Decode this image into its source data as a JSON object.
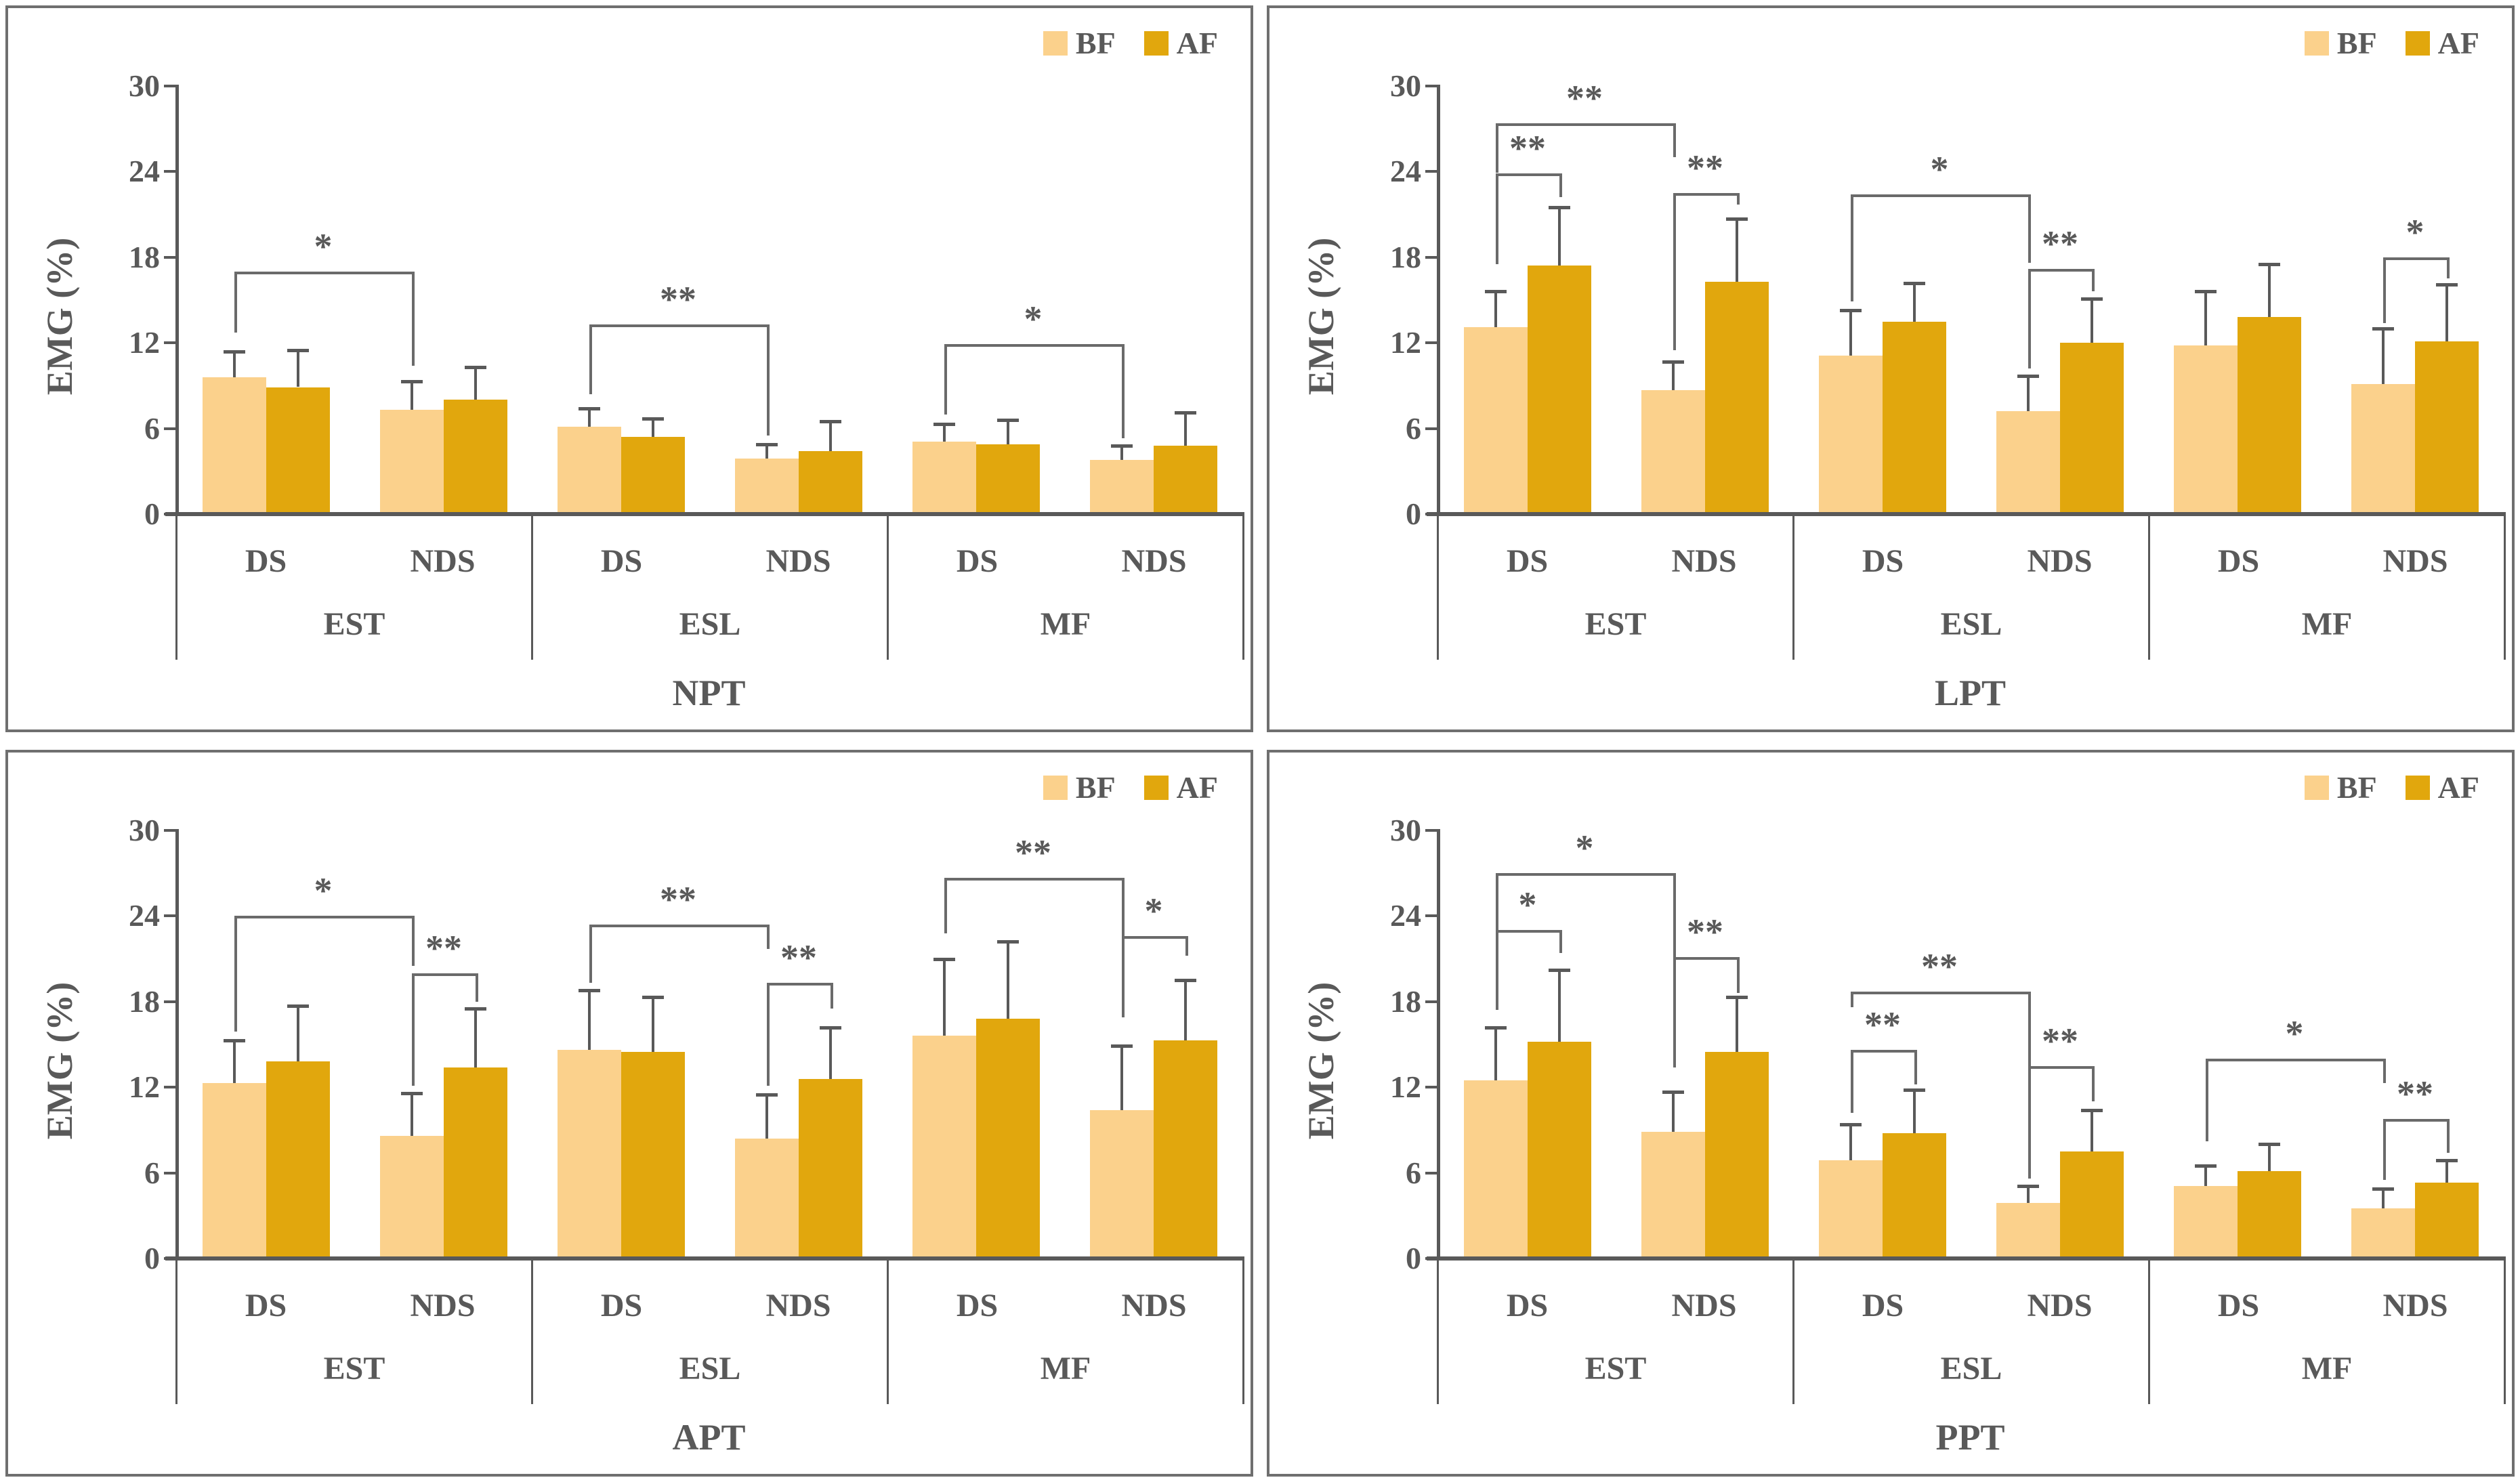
{
  "legend": {
    "items": [
      {
        "label": "BF",
        "color": "#FBD18C"
      },
      {
        "label": "AF",
        "color": "#E1A70D"
      }
    ]
  },
  "axis": {
    "label": "EMG (%)",
    "min": 0,
    "max": 30,
    "ticks": [
      0,
      6,
      12,
      18,
      24,
      30
    ]
  },
  "categories": {
    "groups": [
      "EST",
      "ESL",
      "MF"
    ],
    "subgroups": [
      "DS",
      "NDS"
    ]
  },
  "colors": {
    "bf": "#FBD18C",
    "af": "#E1A70D",
    "axis_line": "#595959",
    "text": "#595959",
    "error_bar": "#595959",
    "bracket": "#6a6a6a",
    "panel_border": "#6f6f6f",
    "background": "#ffffff"
  },
  "chart_data": [
    {
      "type": "bar",
      "title": "NPT",
      "ylabel": "EMG (%)",
      "ylim": [
        0,
        30
      ],
      "groups": [
        "EST",
        "ESL",
        "MF"
      ],
      "subgroups": [
        "DS",
        "NDS"
      ],
      "series": [
        "BF",
        "AF"
      ],
      "bars": [
        {
          "group": "EST",
          "subgroup": "DS",
          "series": "BF",
          "mean": 9.6,
          "err": 1.8
        },
        {
          "group": "EST",
          "subgroup": "DS",
          "series": "AF",
          "mean": 8.9,
          "err": 2.6
        },
        {
          "group": "EST",
          "subgroup": "NDS",
          "series": "BF",
          "mean": 7.3,
          "err": 2.0
        },
        {
          "group": "EST",
          "subgroup": "NDS",
          "series": "AF",
          "mean": 8.0,
          "err": 2.3
        },
        {
          "group": "ESL",
          "subgroup": "DS",
          "series": "BF",
          "mean": 6.1,
          "err": 1.3
        },
        {
          "group": "ESL",
          "subgroup": "DS",
          "series": "AF",
          "mean": 5.4,
          "err": 1.3
        },
        {
          "group": "ESL",
          "subgroup": "NDS",
          "series": "BF",
          "mean": 3.9,
          "err": 1.0
        },
        {
          "group": "ESL",
          "subgroup": "NDS",
          "series": "AF",
          "mean": 4.4,
          "err": 2.1
        },
        {
          "group": "MF",
          "subgroup": "DS",
          "series": "BF",
          "mean": 5.1,
          "err": 1.2
        },
        {
          "group": "MF",
          "subgroup": "DS",
          "series": "AF",
          "mean": 4.9,
          "err": 1.7
        },
        {
          "group": "MF",
          "subgroup": "NDS",
          "series": "BF",
          "mean": 3.8,
          "err": 1.0
        },
        {
          "group": "MF",
          "subgroup": "NDS",
          "series": "AF",
          "mean": 4.8,
          "err": 2.3
        }
      ],
      "brackets": [
        {
          "from": 0,
          "to": 2,
          "y": 17.0,
          "left_end": 12.7,
          "right_end": 10.4,
          "label": "*"
        },
        {
          "from": 4,
          "to": 6,
          "y": 13.3,
          "left_end": 8.4,
          "right_end": 5.5,
          "label": "**"
        },
        {
          "from": 8,
          "to": 10,
          "y": 11.9,
          "left_end": 7.0,
          "right_end": 5.3,
          "label": "*"
        }
      ]
    },
    {
      "type": "bar",
      "title": "LPT",
      "ylabel": "EMG (%)",
      "ylim": [
        0,
        30
      ],
      "groups": [
        "EST",
        "ESL",
        "MF"
      ],
      "subgroups": [
        "DS",
        "NDS"
      ],
      "series": [
        "BF",
        "AF"
      ],
      "bars": [
        {
          "group": "EST",
          "subgroup": "DS",
          "series": "BF",
          "mean": 13.1,
          "err": 2.5
        },
        {
          "group": "EST",
          "subgroup": "DS",
          "series": "AF",
          "mean": 17.4,
          "err": 4.1
        },
        {
          "group": "EST",
          "subgroup": "NDS",
          "series": "BF",
          "mean": 8.7,
          "err": 2.0
        },
        {
          "group": "EST",
          "subgroup": "NDS",
          "series": "AF",
          "mean": 16.3,
          "err": 4.4
        },
        {
          "group": "ESL",
          "subgroup": "DS",
          "series": "BF",
          "mean": 11.1,
          "err": 3.2
        },
        {
          "group": "ESL",
          "subgroup": "DS",
          "series": "AF",
          "mean": 13.5,
          "err": 2.7
        },
        {
          "group": "ESL",
          "subgroup": "NDS",
          "series": "BF",
          "mean": 7.2,
          "err": 2.5
        },
        {
          "group": "ESL",
          "subgroup": "NDS",
          "series": "AF",
          "mean": 12.0,
          "err": 3.1
        },
        {
          "group": "MF",
          "subgroup": "DS",
          "series": "BF",
          "mean": 11.8,
          "err": 3.8
        },
        {
          "group": "MF",
          "subgroup": "DS",
          "series": "AF",
          "mean": 13.8,
          "err": 3.7
        },
        {
          "group": "MF",
          "subgroup": "NDS",
          "series": "BF",
          "mean": 9.1,
          "err": 3.9
        },
        {
          "group": "MF",
          "subgroup": "NDS",
          "series": "AF",
          "mean": 12.1,
          "err": 4.0
        }
      ],
      "brackets": [
        {
          "from": 0,
          "to": 1,
          "y": 23.9,
          "left_end": 17.5,
          "right_end": 22.2,
          "label": "**"
        },
        {
          "from": 0,
          "to": 2,
          "y": 27.4,
          "left_end": 23.9,
          "right_end": 25.0,
          "label": "**"
        },
        {
          "from": 2,
          "to": 3,
          "y": 22.5,
          "left_end": 11.5,
          "right_end": 21.7,
          "label": "**"
        },
        {
          "from": 4,
          "to": 6,
          "y": 22.4,
          "left_end": 14.9,
          "right_end": 17.6,
          "label": "*"
        },
        {
          "from": 6,
          "to": 7,
          "y": 17.2,
          "left_end": 10.2,
          "right_end": 15.6,
          "label": "**"
        },
        {
          "from": 10,
          "to": 11,
          "y": 18.0,
          "left_end": 13.4,
          "right_end": 16.5,
          "label": "*"
        }
      ]
    },
    {
      "type": "bar",
      "title": "APT",
      "ylabel": "EMG (%)",
      "ylim": [
        0,
        30
      ],
      "groups": [
        "EST",
        "ESL",
        "MF"
      ],
      "subgroups": [
        "DS",
        "NDS"
      ],
      "series": [
        "BF",
        "AF"
      ],
      "bars": [
        {
          "group": "EST",
          "subgroup": "DS",
          "series": "BF",
          "mean": 12.3,
          "err": 3.0
        },
        {
          "group": "EST",
          "subgroup": "DS",
          "series": "AF",
          "mean": 13.8,
          "err": 3.9
        },
        {
          "group": "EST",
          "subgroup": "NDS",
          "series": "BF",
          "mean": 8.6,
          "err": 3.0
        },
        {
          "group": "EST",
          "subgroup": "NDS",
          "series": "AF",
          "mean": 13.4,
          "err": 4.1
        },
        {
          "group": "ESL",
          "subgroup": "DS",
          "series": "BF",
          "mean": 14.6,
          "err": 4.2
        },
        {
          "group": "ESL",
          "subgroup": "DS",
          "series": "AF",
          "mean": 14.5,
          "err": 3.8
        },
        {
          "group": "ESL",
          "subgroup": "NDS",
          "series": "BF",
          "mean": 8.4,
          "err": 3.1
        },
        {
          "group": "ESL",
          "subgroup": "NDS",
          "series": "AF",
          "mean": 12.6,
          "err": 3.6
        },
        {
          "group": "MF",
          "subgroup": "DS",
          "series": "BF",
          "mean": 15.6,
          "err": 5.4
        },
        {
          "group": "MF",
          "subgroup": "DS",
          "series": "AF",
          "mean": 16.8,
          "err": 5.4
        },
        {
          "group": "MF",
          "subgroup": "NDS",
          "series": "BF",
          "mean": 10.4,
          "err": 4.5
        },
        {
          "group": "MF",
          "subgroup": "NDS",
          "series": "AF",
          "mean": 15.3,
          "err": 4.2
        }
      ],
      "brackets": [
        {
          "from": 0,
          "to": 2,
          "y": 24.0,
          "left_end": 15.9,
          "right_end": 20.5,
          "label": "*"
        },
        {
          "from": 2,
          "to": 3,
          "y": 20.0,
          "left_end": 12.1,
          "right_end": 18.0,
          "label": "**"
        },
        {
          "from": 4,
          "to": 6,
          "y": 23.4,
          "left_end": 19.3,
          "right_end": 21.7,
          "label": "**"
        },
        {
          "from": 6,
          "to": 7,
          "y": 19.3,
          "left_end": 12.1,
          "right_end": 17.5,
          "label": "**"
        },
        {
          "from": 8,
          "to": 10,
          "y": 26.7,
          "left_end": 22.8,
          "right_end": 22.6,
          "label": "**"
        },
        {
          "from": 10,
          "to": 11,
          "y": 22.6,
          "left_end": 16.9,
          "right_end": 21.2,
          "label": "*"
        }
      ]
    },
    {
      "type": "bar",
      "title": "PPT",
      "ylabel": "EMG (%)",
      "ylim": [
        0,
        30
      ],
      "groups": [
        "EST",
        "ESL",
        "MF"
      ],
      "subgroups": [
        "DS",
        "NDS"
      ],
      "series": [
        "BF",
        "AF"
      ],
      "bars": [
        {
          "group": "EST",
          "subgroup": "DS",
          "series": "BF",
          "mean": 12.5,
          "err": 3.7
        },
        {
          "group": "EST",
          "subgroup": "DS",
          "series": "AF",
          "mean": 15.2,
          "err": 5.0
        },
        {
          "group": "EST",
          "subgroup": "NDS",
          "series": "BF",
          "mean": 8.9,
          "err": 2.8
        },
        {
          "group": "EST",
          "subgroup": "NDS",
          "series": "AF",
          "mean": 14.5,
          "err": 3.8
        },
        {
          "group": "ESL",
          "subgroup": "DS",
          "series": "BF",
          "mean": 6.9,
          "err": 2.5
        },
        {
          "group": "ESL",
          "subgroup": "DS",
          "series": "AF",
          "mean": 8.8,
          "err": 3.0
        },
        {
          "group": "ESL",
          "subgroup": "NDS",
          "series": "BF",
          "mean": 3.9,
          "err": 1.2
        },
        {
          "group": "ESL",
          "subgroup": "NDS",
          "series": "AF",
          "mean": 7.5,
          "err": 2.9
        },
        {
          "group": "MF",
          "subgroup": "DS",
          "series": "BF",
          "mean": 5.1,
          "err": 1.4
        },
        {
          "group": "MF",
          "subgroup": "DS",
          "series": "AF",
          "mean": 6.1,
          "err": 1.9
        },
        {
          "group": "MF",
          "subgroup": "NDS",
          "series": "BF",
          "mean": 3.5,
          "err": 1.4
        },
        {
          "group": "MF",
          "subgroup": "NDS",
          "series": "AF",
          "mean": 5.3,
          "err": 1.6
        }
      ],
      "brackets": [
        {
          "from": 0,
          "to": 1,
          "y": 23.0,
          "left_end": 17.4,
          "right_end": 21.4,
          "label": "*"
        },
        {
          "from": 0,
          "to": 2,
          "y": 27.0,
          "left_end": 23.0,
          "right_end": 21.1,
          "label": "*"
        },
        {
          "from": 2,
          "to": 3,
          "y": 21.1,
          "left_end": 13.4,
          "right_end": 18.6,
          "label": "**"
        },
        {
          "from": 4,
          "to": 5,
          "y": 14.6,
          "left_end": 10.2,
          "right_end": 12.2,
          "label": "**"
        },
        {
          "from": 4,
          "to": 6,
          "y": 18.7,
          "left_end": 17.6,
          "right_end": 5.6,
          "label": "**"
        },
        {
          "from": 6,
          "to": 7,
          "y": 13.5,
          "left_end": 6.0,
          "right_end": 11.0,
          "label": "**"
        },
        {
          "from": 8,
          "to": 10,
          "y": 14.0,
          "left_end": 8.2,
          "right_end": 12.3,
          "label": "*"
        },
        {
          "from": 10,
          "to": 11,
          "y": 9.8,
          "left_end": 5.5,
          "right_end": 7.4,
          "label": "**"
        }
      ]
    }
  ]
}
